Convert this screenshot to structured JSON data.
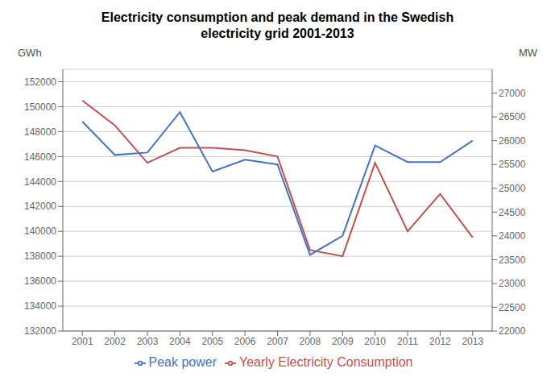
{
  "chart_data": {
    "type": "line",
    "title": "Electricity consumption and peak demand in the Swedish\nelectricity grid 2001-2013",
    "ylabel": "GWh",
    "y2label": "MW",
    "x": [
      2001,
      2002,
      2003,
      2004,
      2005,
      2006,
      2007,
      2008,
      2009,
      2010,
      2011,
      2012,
      2013
    ],
    "xlim": [
      2000.4,
      2013.6
    ],
    "xticks": [
      2001,
      2002,
      2003,
      2004,
      2005,
      2006,
      2007,
      2008,
      2009,
      2010,
      2011,
      2012,
      2013
    ],
    "series": [
      {
        "name": "Yearly Electricity Consumption",
        "color": "#c0504d",
        "values": [
          150500,
          148500,
          145500,
          146700,
          146700,
          146500,
          146000,
          138500,
          138000,
          145500,
          140000,
          143000,
          139500
        ]
      },
      {
        "name": "Peak power",
        "color": "#4472c4",
        "axis": "y2",
        "values": [
          26400,
          25700,
          25750,
          26600,
          25350,
          25600,
          25500,
          23600,
          24000,
          25900,
          25550,
          25550,
          26000
        ]
      }
    ],
    "ylim": [
      132000,
      153000
    ],
    "yticks": [
      132000,
      134000,
      136000,
      138000,
      140000,
      142000,
      144000,
      146000,
      148000,
      150000,
      152000
    ],
    "y2lim": [
      22000,
      27500
    ],
    "y2ticks": [
      22000,
      22500,
      23000,
      23500,
      24000,
      24500,
      25000,
      25500,
      26000,
      26500,
      27000
    ],
    "grid": true,
    "legend": "bottom"
  }
}
